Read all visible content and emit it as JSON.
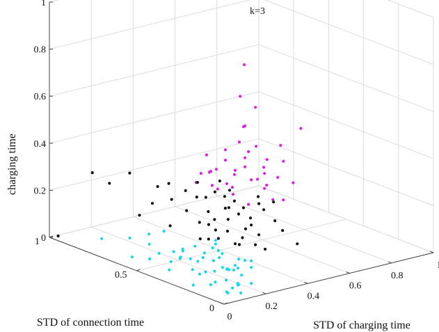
{
  "chart_data": {
    "type": "scatter3d",
    "title": "k=3",
    "xlabel": "STD of charging time",
    "ylabel": "STD of connection time",
    "zlabel": "charging time",
    "xlim": [
      0,
      1
    ],
    "ylim": [
      0,
      1
    ],
    "zlim": [
      0,
      1
    ],
    "x_ticks": [
      "0",
      "0.2",
      "0.4",
      "0.6",
      "0.8",
      "1"
    ],
    "y_ticks": [
      "0",
      "0.5",
      "1"
    ],
    "z_ticks": [
      "0",
      "0.2",
      "0.4",
      "0.6",
      "0.8",
      "1"
    ],
    "grid": true,
    "series": [
      {
        "color": "#e020e0",
        "points": [
          [
            0.18,
            0.1,
            0.95
          ],
          [
            0.3,
            0.18,
            0.72
          ],
          [
            0.2,
            0.12,
            0.68
          ],
          [
            0.26,
            0.2,
            0.64
          ],
          [
            0.14,
            0.16,
            0.58
          ],
          [
            0.1,
            0.22,
            0.55
          ],
          [
            0.22,
            0.08,
            0.6
          ],
          [
            0.12,
            0.08,
            0.52
          ],
          [
            0.3,
            0.24,
            0.45
          ],
          [
            0.33,
            0.15,
            0.5
          ],
          [
            0.36,
            0.2,
            0.42
          ],
          [
            0.4,
            0.14,
            0.48
          ],
          [
            0.44,
            0.22,
            0.38
          ],
          [
            0.38,
            0.3,
            0.36
          ],
          [
            0.26,
            0.12,
            0.44
          ],
          [
            0.3,
            0.3,
            0.4
          ],
          [
            0.34,
            0.36,
            0.32
          ],
          [
            0.42,
            0.26,
            0.34
          ],
          [
            0.46,
            0.32,
            0.3
          ],
          [
            0.24,
            0.28,
            0.48
          ],
          [
            0.18,
            0.26,
            0.46
          ],
          [
            0.28,
            0.32,
            0.36
          ],
          [
            0.36,
            0.38,
            0.28
          ],
          [
            0.4,
            0.2,
            0.3
          ],
          [
            0.48,
            0.18,
            0.36
          ],
          [
            0.5,
            0.26,
            0.26
          ],
          [
            0.22,
            0.34,
            0.42
          ],
          [
            0.32,
            0.42,
            0.3
          ],
          [
            0.14,
            0.3,
            0.44
          ],
          [
            0.26,
            0.38,
            0.34
          ],
          [
            0.4,
            0.34,
            0.24
          ],
          [
            0.16,
            0.1,
            0.82
          ],
          [
            0.45,
            0.1,
            0.62
          ],
          [
            0.2,
            0.4,
            0.36
          ],
          [
            0.3,
            0.22,
            0.52
          ],
          [
            0.37,
            0.12,
            0.56
          ],
          [
            0.24,
            0.2,
            0.58
          ],
          [
            0.44,
            0.3,
            0.4
          ],
          [
            0.35,
            0.3,
            0.46
          ],
          [
            0.28,
            0.42,
            0.38
          ]
        ]
      },
      {
        "color": "#111111",
        "points": [
          [
            0.0,
            0.95,
            0.02
          ],
          [
            0.6,
            0.3,
            0.04
          ],
          [
            0.08,
            0.85,
            0.3
          ],
          [
            0.12,
            0.8,
            0.26
          ],
          [
            0.15,
            0.72,
            0.32
          ],
          [
            0.2,
            0.65,
            0.2
          ],
          [
            0.25,
            0.6,
            0.22
          ],
          [
            0.28,
            0.55,
            0.18
          ],
          [
            0.3,
            0.5,
            0.14
          ],
          [
            0.33,
            0.45,
            0.16
          ],
          [
            0.35,
            0.4,
            0.12
          ],
          [
            0.38,
            0.35,
            0.1
          ],
          [
            0.4,
            0.3,
            0.08
          ],
          [
            0.42,
            0.38,
            0.12
          ],
          [
            0.36,
            0.48,
            0.1
          ],
          [
            0.32,
            0.52,
            0.06
          ],
          [
            0.3,
            0.45,
            0.2
          ],
          [
            0.34,
            0.4,
            0.22
          ],
          [
            0.37,
            0.42,
            0.16
          ],
          [
            0.39,
            0.44,
            0.2
          ],
          [
            0.41,
            0.34,
            0.18
          ],
          [
            0.43,
            0.36,
            0.14
          ],
          [
            0.35,
            0.36,
            0.26
          ],
          [
            0.32,
            0.38,
            0.28
          ],
          [
            0.29,
            0.4,
            0.3
          ],
          [
            0.31,
            0.34,
            0.32
          ],
          [
            0.36,
            0.32,
            0.24
          ],
          [
            0.44,
            0.3,
            0.22
          ],
          [
            0.46,
            0.26,
            0.18
          ],
          [
            0.48,
            0.24,
            0.14
          ],
          [
            0.4,
            0.28,
            0.26
          ],
          [
            0.38,
            0.26,
            0.3
          ],
          [
            0.45,
            0.34,
            0.1
          ],
          [
            0.33,
            0.5,
            0.24
          ],
          [
            0.27,
            0.48,
            0.26
          ],
          [
            0.25,
            0.52,
            0.28
          ],
          [
            0.22,
            0.58,
            0.3
          ],
          [
            0.2,
            0.62,
            0.28
          ],
          [
            0.24,
            0.44,
            0.34
          ],
          [
            0.28,
            0.36,
            0.36
          ],
          [
            0.34,
            0.44,
            0.08
          ],
          [
            0.36,
            0.52,
            0.05
          ],
          [
            0.42,
            0.44,
            0.04
          ],
          [
            0.26,
            0.62,
            0.1
          ],
          [
            0.18,
            0.7,
            0.14
          ],
          [
            0.42,
            0.22,
            0.28
          ],
          [
            0.37,
            0.36,
            0.2
          ],
          [
            0.39,
            0.38,
            0.06
          ],
          [
            0.31,
            0.46,
            0.14
          ],
          [
            0.43,
            0.28,
            0.06
          ]
        ]
      },
      {
        "color": "#18d8e8",
        "points": [
          [
            0.0,
            0.7,
            0.08
          ],
          [
            0.05,
            0.6,
            0.1
          ],
          [
            0.1,
            0.55,
            0.12
          ],
          [
            0.02,
            0.45,
            0.06
          ],
          [
            0.08,
            0.4,
            0.05
          ],
          [
            0.12,
            0.38,
            0.1
          ],
          [
            0.15,
            0.3,
            0.08
          ],
          [
            0.18,
            0.28,
            0.12
          ],
          [
            0.2,
            0.25,
            0.1
          ],
          [
            0.22,
            0.2,
            0.06
          ],
          [
            0.25,
            0.18,
            0.08
          ],
          [
            0.1,
            0.3,
            0.04
          ],
          [
            0.05,
            0.2,
            0.06
          ],
          [
            0.08,
            0.15,
            0.08
          ],
          [
            0.02,
            0.1,
            0.05
          ],
          [
            0.06,
            0.08,
            0.12
          ],
          [
            0.1,
            0.1,
            0.1
          ],
          [
            0.14,
            0.2,
            0.14
          ],
          [
            0.18,
            0.16,
            0.06
          ],
          [
            0.04,
            0.3,
            0.1
          ],
          [
            0.12,
            0.25,
            0.04
          ],
          [
            0.16,
            0.22,
            0.1
          ],
          [
            0.0,
            0.05,
            0.08
          ],
          [
            0.03,
            0.02,
            0.04
          ],
          [
            0.06,
            0.05,
            0.02
          ],
          [
            0.09,
            0.03,
            0.06
          ],
          [
            0.12,
            0.06,
            0.04
          ],
          [
            0.15,
            0.1,
            0.02
          ],
          [
            0.01,
            0.0,
            0.1
          ],
          [
            0.04,
            0.0,
            0.06
          ],
          [
            0.08,
            0.0,
            0.03
          ],
          [
            0.0,
            0.15,
            0.14
          ],
          [
            0.07,
            0.25,
            0.16
          ],
          [
            0.11,
            0.18,
            0.18
          ],
          [
            0.13,
            0.14,
            0.08
          ],
          [
            0.17,
            0.12,
            0.12
          ],
          [
            0.2,
            0.14,
            0.04
          ],
          [
            0.23,
            0.12,
            0.1
          ],
          [
            0.19,
            0.34,
            0.08
          ],
          [
            0.03,
            0.35,
            0.04
          ],
          [
            0.07,
            0.32,
            0.12
          ],
          [
            0.14,
            0.36,
            0.06
          ],
          [
            0.11,
            0.42,
            0.08
          ],
          [
            0.16,
            0.44,
            0.04
          ],
          [
            0.06,
            0.5,
            0.1
          ],
          [
            0.02,
            0.55,
            0.04
          ],
          [
            0.13,
            0.5,
            0.14
          ],
          [
            0.09,
            0.48,
            0.06
          ],
          [
            0.21,
            0.3,
            0.14
          ],
          [
            0.24,
            0.26,
            0.02
          ],
          [
            0.05,
            0.12,
            0.14
          ],
          [
            0.1,
            0.04,
            0.12
          ],
          [
            0.13,
            0.0,
            0.06
          ],
          [
            0.02,
            0.2,
            0.02
          ],
          [
            0.18,
            0.06,
            0.1
          ]
        ]
      }
    ]
  }
}
